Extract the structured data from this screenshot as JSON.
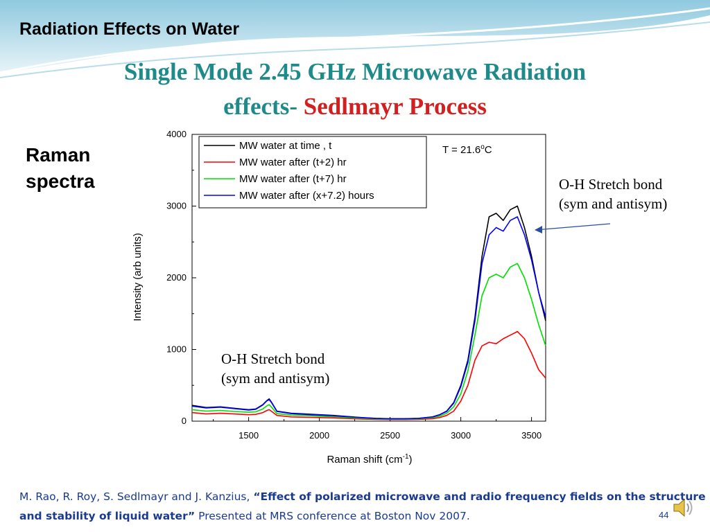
{
  "slide": {
    "header": "Radiation Effects on Water",
    "title_line1": "Single Mode 2.45 GHz Microwave Radiation",
    "title_line2_a": "effects-",
    "title_line2_b": "Sedlmayr Process",
    "side_label_1": "Raman",
    "side_label_2": "spectra",
    "annotation_right_1": "O-H Stretch  bond",
    "annotation_right_2": "(sym and antisym)",
    "annotation_left_1": "O-H Stretch  bond",
    "annotation_left_2": "(sym and antisym)",
    "citation_authors": "M. Rao, R. Roy, S. Sedlmayr and J. Kanzius, ",
    "citation_title": "“Effect of polarized microwave and radio frequency fields on the structure and stability of liquid water”",
    "citation_rest": " Presented at MRS conference at Boston Nov 2007.",
    "page_number": "44",
    "accent_color": "#1f8a8a",
    "highlight_color": "#d21f1f",
    "citation_color": "#1a3a8f"
  },
  "chart_data": {
    "type": "line",
    "title": "",
    "xlabel": "Raman shift (cm",
    "xlabel_sup": "-1",
    "xlabel_end": ")",
    "ylabel": "Intensity (arb units)",
    "xlim": [
      1100,
      3600
    ],
    "ylim": [
      0,
      4000
    ],
    "xticks": [
      1500,
      2000,
      2500,
      3000,
      3500
    ],
    "yticks": [
      0,
      1000,
      2000,
      3000,
      4000
    ],
    "annotation": "T = 21.6",
    "annotation_sup": "o",
    "annotation_end": "C",
    "legend_position": "top-left",
    "x": [
      1100,
      1200,
      1300,
      1400,
      1500,
      1550,
      1600,
      1630,
      1645,
      1660,
      1700,
      1800,
      1900,
      2000,
      2100,
      2200,
      2300,
      2400,
      2500,
      2600,
      2700,
      2800,
      2850,
      2900,
      2950,
      3000,
      3050,
      3100,
      3150,
      3200,
      3250,
      3300,
      3350,
      3400,
      3450,
      3500,
      3550,
      3600
    ],
    "series": [
      {
        "name": "MW water at time , t",
        "color": "#000000",
        "values": [
          220,
          190,
          200,
          180,
          160,
          170,
          230,
          290,
          310,
          270,
          140,
          110,
          100,
          90,
          80,
          65,
          50,
          40,
          35,
          35,
          40,
          60,
          90,
          140,
          260,
          500,
          850,
          1450,
          2300,
          2850,
          2900,
          2800,
          2950,
          3000,
          2700,
          2300,
          1800,
          1400
        ]
      },
      {
        "name": "MW water after (t+2) hr",
        "color": "#ff0000",
        "values": [
          120,
          100,
          110,
          100,
          90,
          95,
          120,
          150,
          160,
          140,
          80,
          60,
          55,
          50,
          45,
          38,
          30,
          25,
          22,
          22,
          25,
          35,
          50,
          80,
          140,
          280,
          500,
          850,
          1050,
          1100,
          1080,
          1150,
          1200,
          1250,
          1150,
          950,
          720,
          600
        ]
      },
      {
        "name": "MW water after (t+7) hr",
        "color": "#00dd00",
        "values": [
          160,
          140,
          150,
          135,
          125,
          130,
          170,
          215,
          230,
          200,
          105,
          85,
          80,
          70,
          62,
          50,
          40,
          32,
          28,
          28,
          32,
          48,
          70,
          110,
          200,
          380,
          700,
          1200,
          1750,
          2000,
          2050,
          2000,
          2150,
          2200,
          2000,
          1700,
          1350,
          1050
        ]
      },
      {
        "name": "MW water after (x+7.2) hours",
        "color": "#0000ff",
        "values": [
          210,
          185,
          195,
          175,
          155,
          165,
          225,
          285,
          300,
          265,
          135,
          105,
          95,
          85,
          75,
          62,
          48,
          38,
          33,
          33,
          38,
          58,
          88,
          135,
          250,
          480,
          820,
          1400,
          2200,
          2600,
          2700,
          2650,
          2800,
          2850,
          2600,
          2250,
          1800,
          1450
        ]
      }
    ]
  }
}
